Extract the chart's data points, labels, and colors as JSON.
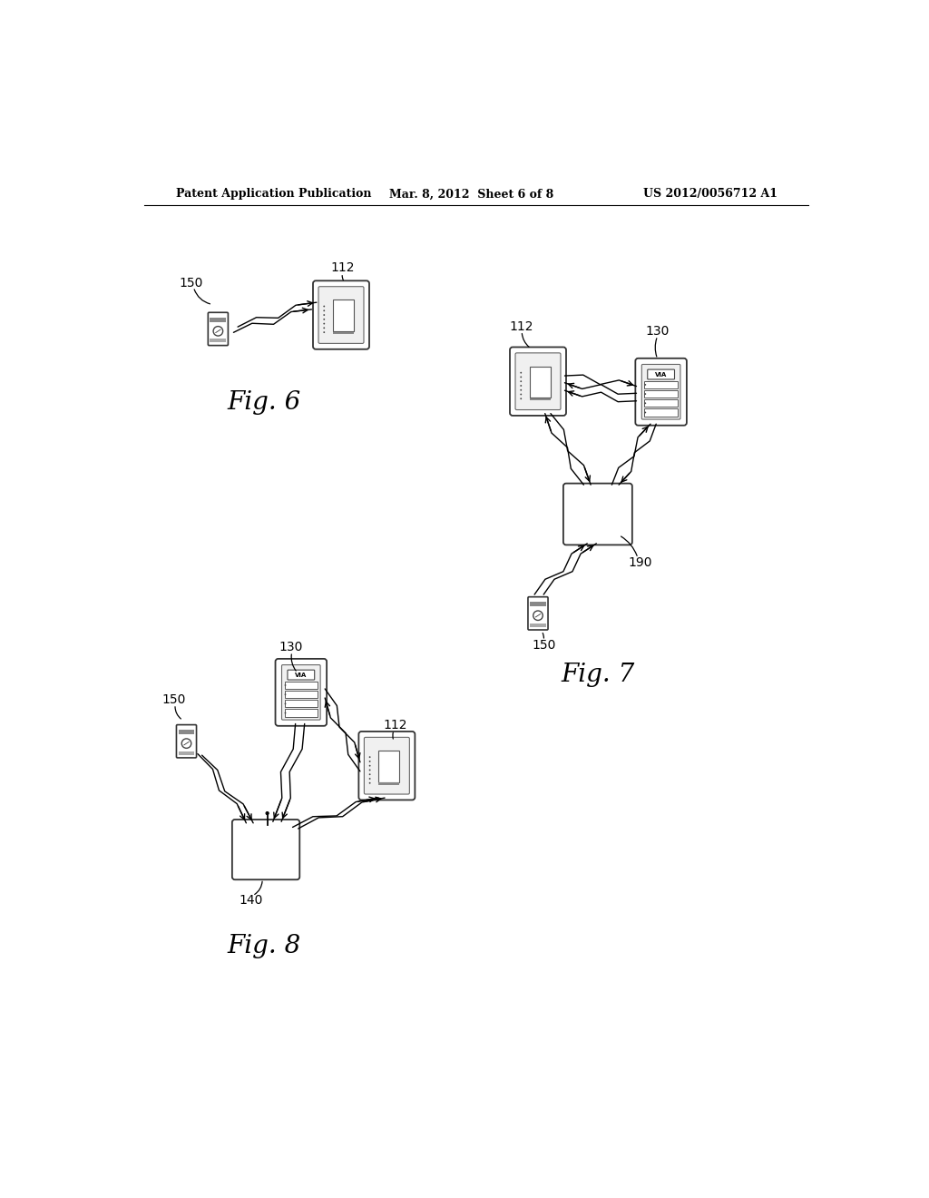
{
  "bg_color": "#ffffff",
  "header_left": "Patent Application Publication",
  "header_center": "Mar. 8, 2012  Sheet 6 of 8",
  "header_right": "US 2012/0056712 A1",
  "fig6_label": "Fig. 6",
  "fig7_label": "Fig. 7",
  "fig8_label": "Fig. 8",
  "label_150": "150",
  "label_112": "112",
  "label_130": "130",
  "label_190": "190",
  "label_140": "140"
}
